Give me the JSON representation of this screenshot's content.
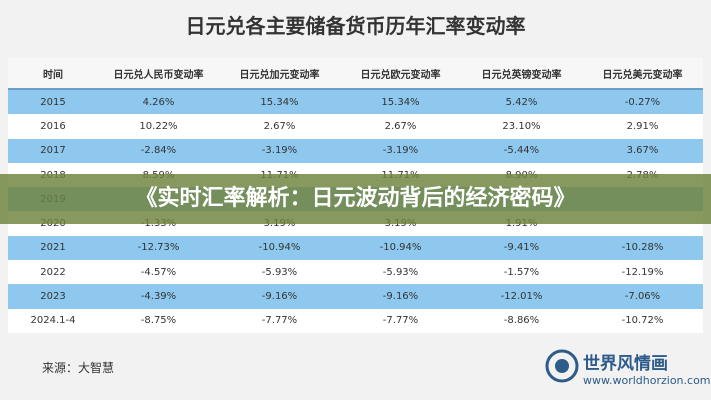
{
  "header": {
    "title": "日元兑各主要储备货币历年汇率变动率"
  },
  "table": {
    "columns": [
      "时间",
      "日元兑人民币变动率",
      "日元兑加元变动率",
      "日元兑欧元变动率",
      "日元兑英镑变动率",
      "日元兑美元变动率"
    ],
    "rows": [
      [
        "2015",
        "4.26%",
        "15.34%",
        "15.34%",
        "5.42%",
        "-0.27%"
      ],
      [
        "2016",
        "10.22%",
        "2.67%",
        "2.67%",
        "23.10%",
        "2.91%"
      ],
      [
        "2017",
        "-2.84%",
        "-3.19%",
        "-3.19%",
        "-5.44%",
        "3.67%"
      ],
      [
        "2018",
        "8.59%",
        "11.71%",
        "11.71%",
        "8.90%",
        "2.78%"
      ],
      [
        "2019"
      ],
      [
        "2020",
        "-1.33%",
        "3.19%",
        "3.19%",
        "1.91%"
      ],
      [
        "2021",
        "-12.73%",
        "-10.94%",
        "-10.94%",
        "-9.41%",
        "-10.28%"
      ],
      [
        "2022",
        "-4.57%",
        "-5.93%",
        "-5.93%",
        "-1.57%",
        "-12.19%"
      ],
      [
        "2023",
        "-4.39%",
        "-9.16%",
        "-9.16%",
        "-12.01%",
        "-7.06%"
      ],
      [
        "2024.1-4",
        "-8.75%",
        "-7.77%",
        "-7.77%",
        "-8.86%",
        "-10.72%"
      ]
    ]
  },
  "source": "来源：大智慧",
  "banner": "《实时汇率解析：日元波动背后的经济密码》",
  "logo": {
    "name": "世界风情画",
    "url": "www.worldhorzion.com"
  }
}
